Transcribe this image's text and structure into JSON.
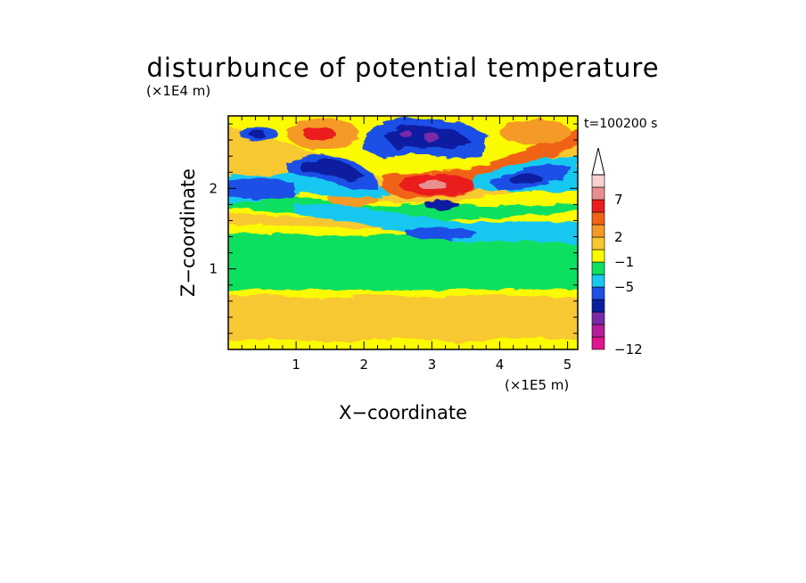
{
  "chart_data": {
    "type": "heatmap",
    "title": "disturbunce of potential temperature",
    "xlabel": "X−coordinate",
    "ylabel": "Z−coordinate",
    "x_unit": "(×1E5 m)",
    "y_unit": "(×1E4 m)",
    "time_label": "t=100200 s",
    "xlim": [
      0,
      5.15
    ],
    "ylim": [
      0,
      2.9
    ],
    "x_ticks": [
      1,
      2,
      3,
      4,
      5
    ],
    "y_ticks": [
      1,
      2
    ],
    "x_tick_labels": [
      "1",
      "2",
      "3",
      "4",
      "5"
    ],
    "y_tick_labels": [
      "1",
      "2"
    ],
    "colorbar": {
      "labels": [
        "−12",
        "−5",
        "−1",
        "2",
        "7"
      ],
      "label_values": [
        -12,
        -5,
        -1,
        2,
        7
      ],
      "level_colors": [
        "#e0148c",
        "#b41e9a",
        "#7a2aa8",
        "#0b1ea0",
        "#1e50e6",
        "#18c8f0",
        "#10e060",
        "#fafa00",
        "#f8c830",
        "#f59a28",
        "#f06414",
        "#ea1e1e",
        "#e89090",
        "#f8d0d0"
      ],
      "extend_top": true
    },
    "field_description": "Contour-filled field: near-zero (green) background; warm (yellow/orange) layer near the surface; cool (blue/purple) and warm (red) wavy bands aloft near z=2.0–2.8 (×1E4 m)."
  }
}
